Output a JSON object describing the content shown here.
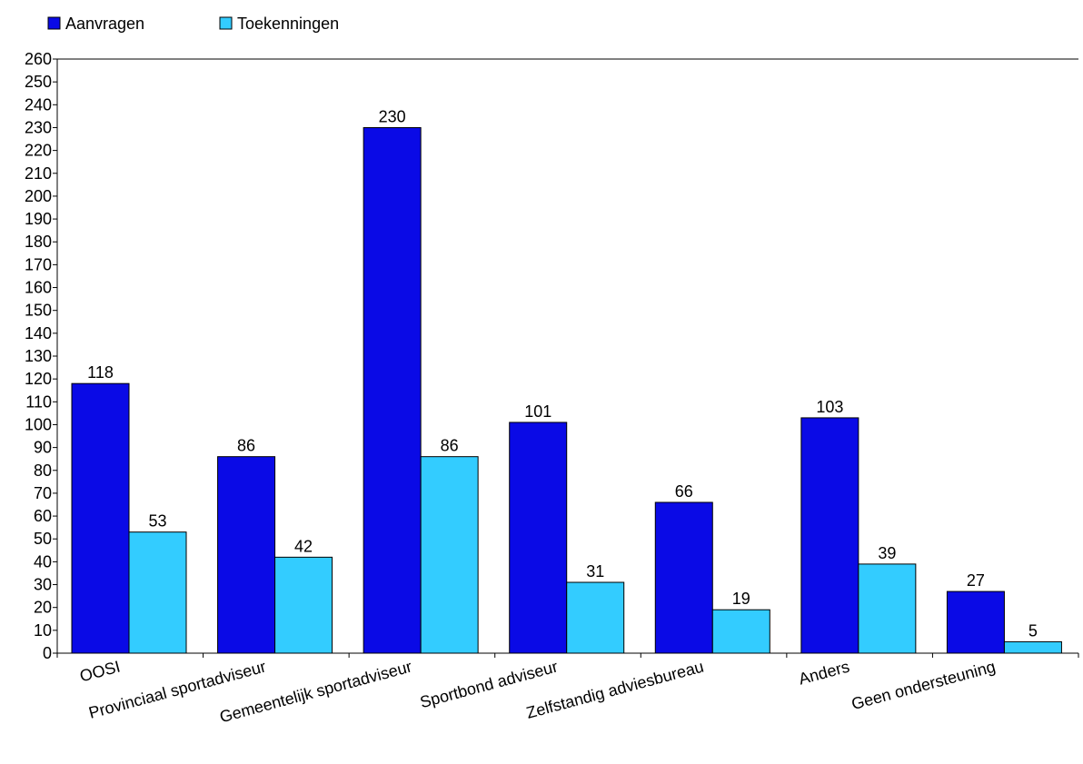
{
  "chart_data": {
    "type": "bar",
    "title": "",
    "xlabel": "",
    "ylabel": "",
    "ylim": [
      0,
      260
    ],
    "ytick_step": 10,
    "grid": false,
    "legend_position": "top-left",
    "categories": [
      "OOSI",
      "Provinciaal sportadviseur",
      "Gemeentelijk sportadviseur",
      "Sportbond adviseur",
      "Zelfstandig adviesbureau",
      "Anders",
      "Geen ondersteuning"
    ],
    "series": [
      {
        "name": "Aanvragen",
        "color": "#0a0ae6",
        "values": [
          118,
          86,
          230,
          101,
          66,
          103,
          27
        ]
      },
      {
        "name": "Toekenningen",
        "color": "#33ccff",
        "values": [
          53,
          42,
          86,
          31,
          19,
          39,
          5
        ]
      }
    ]
  }
}
